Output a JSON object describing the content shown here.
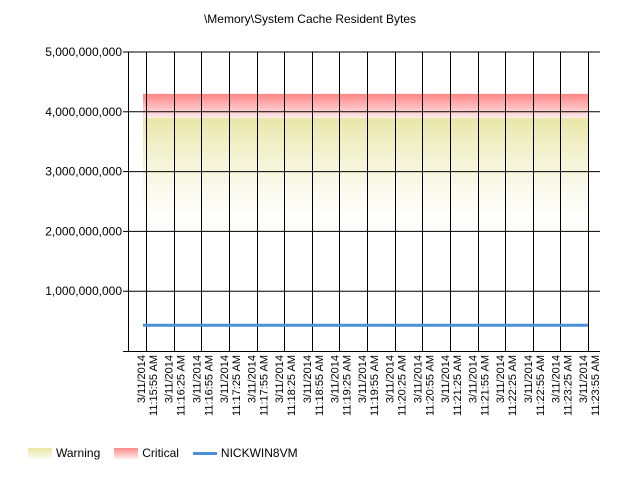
{
  "chart_data": {
    "type": "line",
    "title": "\\Memory\\System Cache Resident Bytes",
    "xlabel": "",
    "ylabel": "",
    "ylim": [
      0,
      5000000000
    ],
    "y_ticks": [
      "5,000,000,000",
      "4,000,000,000",
      "3,000,000,000",
      "2,000,000,000",
      "1,000,000,000"
    ],
    "y_tick_values": [
      5000000000,
      4000000000,
      3000000000,
      2000000000,
      1000000000
    ],
    "categories": [
      "3/11/2014 11:15:55 AM",
      "3/11/2014 11:16:25 AM",
      "3/11/2014 11:16:55 AM",
      "3/11/2014 11:17:25 AM",
      "3/11/2014 11:17:55 AM",
      "3/11/2014 11:18:25 AM",
      "3/11/2014 11:18:55 AM",
      "3/11/2014 11:19:25 AM",
      "3/11/2014 11:19:55 AM",
      "3/11/2014 11:20:25 AM",
      "3/11/2014 11:20:55 AM",
      "3/11/2014 11:21:25 AM",
      "3/11/2014 11:21:55 AM",
      "3/11/2014 11:22:25 AM",
      "3/11/2014 11:22:55 AM",
      "3/11/2014 11:23:25 AM",
      "3/11/2014 11:23:55 AM"
    ],
    "bands": [
      {
        "name": "Warning",
        "from": 2000000000,
        "to": 3900000000,
        "color_top": "#e9e6a6",
        "color_bottom": "#fbfbef"
      },
      {
        "name": "Critical",
        "from": 3900000000,
        "to": 4300000000,
        "color_top": "#ff8a8a",
        "color_bottom": "#ffecec"
      }
    ],
    "series": [
      {
        "name": "NICKWIN8VM",
        "color": "#4a90d9",
        "values": [
          430000000,
          430000000,
          430000000,
          430000000,
          430000000,
          430000000,
          430000000,
          430000000,
          430000000,
          430000000,
          430000000,
          430000000,
          430000000,
          430000000,
          430000000,
          430000000,
          430000000
        ]
      }
    ],
    "grid": true,
    "legend_position": "bottom-left"
  },
  "legend": {
    "warning": "Warning",
    "critical": "Critical",
    "series": "NICKWIN8VM"
  }
}
